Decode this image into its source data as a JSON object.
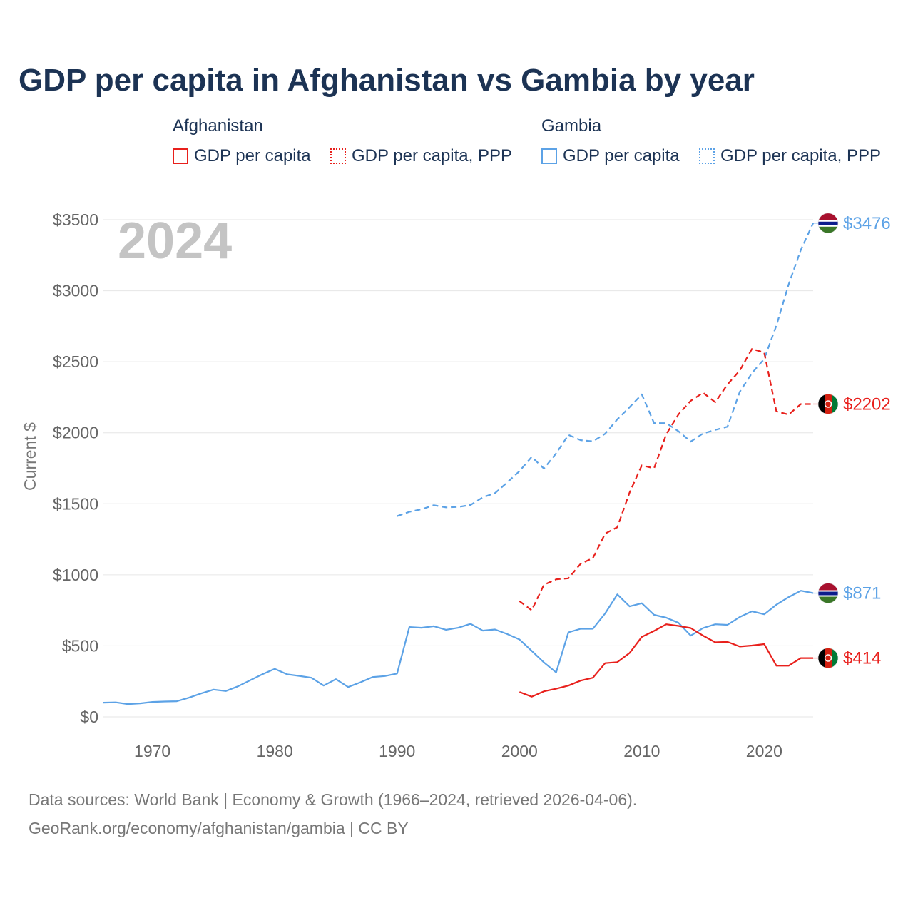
{
  "title": "GDP per capita in Afghanistan vs Gambia by year",
  "legend": {
    "afghanistan_title": "Afghanistan",
    "gambia_title": "Gambia",
    "gdp_label": "GDP per capita",
    "ppp_label": "GDP per capita, PPP"
  },
  "colors": {
    "afghanistan": "#e8201c",
    "gambia": "#5ca2e6"
  },
  "year_watermark": "2024",
  "footer": {
    "line1": "Data sources: World Bank | Economy & Growth (1966–2024, retrieved 2026-04-06).",
    "line2": "GeoRank.org/economy/afghanistan/gambia | CC BY"
  },
  "chart_data": {
    "type": "line",
    "title": "GDP per capita in Afghanistan vs Gambia by year",
    "ylabel": "Current $",
    "xlabel": "",
    "xlim": [
      1966,
      2024
    ],
    "ylim": [
      0,
      3500
    ],
    "x_ticks": [
      1970,
      1980,
      1990,
      2000,
      2010,
      2020
    ],
    "y_ticks": [
      {
        "value": 0,
        "label": "$0"
      },
      {
        "value": 500,
        "label": "$500"
      },
      {
        "value": 1000,
        "label": "$1000"
      },
      {
        "value": 1500,
        "label": "$1500"
      },
      {
        "value": 2000,
        "label": "$2000"
      },
      {
        "value": 2500,
        "label": "$2500"
      },
      {
        "value": 3000,
        "label": "$3000"
      },
      {
        "value": 3500,
        "label": "$3500"
      }
    ],
    "series": [
      {
        "name": "Gambia GDP per capita",
        "country": "gambia",
        "style": "solid",
        "end_label": "$871",
        "x": [
          1966,
          1967,
          1968,
          1969,
          1970,
          1971,
          1972,
          1973,
          1974,
          1975,
          1976,
          1977,
          1978,
          1979,
          1980,
          1981,
          1982,
          1983,
          1984,
          1985,
          1986,
          1987,
          1988,
          1989,
          1990,
          1991,
          1992,
          1993,
          1994,
          1995,
          1996,
          1997,
          1998,
          1999,
          2000,
          2001,
          2002,
          2003,
          2004,
          2005,
          2006,
          2007,
          2008,
          2009,
          2010,
          2011,
          2012,
          2013,
          2014,
          2015,
          2016,
          2017,
          2018,
          2019,
          2020,
          2021,
          2022,
          2023,
          2024
        ],
        "y": [
          100,
          102,
          90,
          95,
          105,
          108,
          110,
          135,
          165,
          192,
          182,
          215,
          258,
          300,
          338,
          300,
          288,
          275,
          220,
          265,
          210,
          243,
          280,
          287,
          305,
          632,
          627,
          638,
          613,
          627,
          655,
          607,
          615,
          583,
          545,
          465,
          383,
          313,
          595,
          620,
          620,
          728,
          862,
          778,
          800,
          718,
          698,
          662,
          572,
          625,
          652,
          648,
          703,
          743,
          722,
          790,
          843,
          888,
          871
        ]
      },
      {
        "name": "Gambia GDP per capita, PPP",
        "country": "gambia",
        "style": "dashed",
        "end_label": "$3476",
        "x": [
          1990,
          1991,
          1992,
          1993,
          1994,
          1995,
          1996,
          1997,
          1998,
          1999,
          2000,
          2001,
          2002,
          2003,
          2004,
          2005,
          2006,
          2007,
          2008,
          2009,
          2010,
          2011,
          2012,
          2013,
          2014,
          2015,
          2016,
          2017,
          2018,
          2019,
          2020,
          2021,
          2022,
          2023,
          2024
        ],
        "y": [
          1413,
          1443,
          1462,
          1490,
          1475,
          1478,
          1492,
          1545,
          1575,
          1650,
          1730,
          1830,
          1748,
          1855,
          1985,
          1948,
          1940,
          1993,
          2095,
          2180,
          2270,
          2068,
          2068,
          2010,
          1938,
          1995,
          2020,
          2043,
          2288,
          2420,
          2520,
          2755,
          3045,
          3288,
          3476
        ]
      },
      {
        "name": "Afghanistan GDP per capita",
        "country": "afghanistan",
        "style": "solid",
        "end_label": "$414",
        "x": [
          2000,
          2001,
          2002,
          2003,
          2004,
          2005,
          2006,
          2007,
          2008,
          2009,
          2010,
          2011,
          2012,
          2013,
          2014,
          2015,
          2016,
          2017,
          2018,
          2019,
          2020,
          2021,
          2022,
          2023,
          2024
        ],
        "y": [
          175,
          142,
          180,
          198,
          220,
          255,
          275,
          378,
          385,
          450,
          563,
          605,
          652,
          640,
          625,
          572,
          525,
          528,
          495,
          502,
          512,
          360,
          360,
          414,
          414
        ]
      },
      {
        "name": "Afghanistan GDP per capita, PPP",
        "country": "afghanistan",
        "style": "dashed",
        "end_label": "$2202",
        "x": [
          2000,
          2001,
          2002,
          2003,
          2004,
          2005,
          2006,
          2007,
          2008,
          2009,
          2010,
          2011,
          2012,
          2013,
          2014,
          2015,
          2016,
          2017,
          2018,
          2019,
          2020,
          2021,
          2022,
          2023,
          2024
        ],
        "y": [
          815,
          750,
          930,
          968,
          975,
          1078,
          1118,
          1290,
          1335,
          1580,
          1770,
          1750,
          1990,
          2130,
          2225,
          2282,
          2215,
          2340,
          2438,
          2590,
          2565,
          2150,
          2128,
          2202,
          2202
        ]
      }
    ]
  }
}
